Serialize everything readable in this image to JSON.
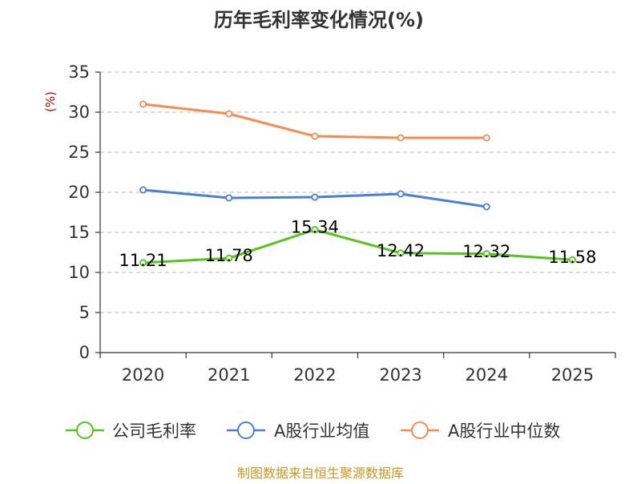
{
  "chart_data": {
    "type": "line",
    "title": "历年毛利率变化情况(%)",
    "ylabel": "(%)",
    "xlabel": "",
    "categories": [
      "2020",
      "2021",
      "2022",
      "2023",
      "2024",
      "2025"
    ],
    "ylim": [
      0,
      35
    ],
    "yticks": [
      0,
      5,
      10,
      15,
      20,
      25,
      30,
      35
    ],
    "grid": true,
    "legend_position": "bottom",
    "series": [
      {
        "name": "公司毛利率",
        "color": "#52c41a",
        "values": [
          11.21,
          11.78,
          15.34,
          12.42,
          12.32,
          11.58
        ],
        "labels": [
          "11.21",
          "11.78",
          "15.34",
          "12.42",
          "12.32",
          "11.58"
        ]
      },
      {
        "name": "A股行业均值",
        "color": "#4a7fd4",
        "values": [
          20.3,
          19.3,
          19.4,
          19.8,
          18.2,
          null
        ]
      },
      {
        "name": "A股行业中位数",
        "color": "#f98b52",
        "values": [
          31.0,
          29.8,
          27.0,
          26.8,
          26.8,
          null
        ]
      }
    ]
  },
  "source": "制图数据来自恒生聚源数据库"
}
